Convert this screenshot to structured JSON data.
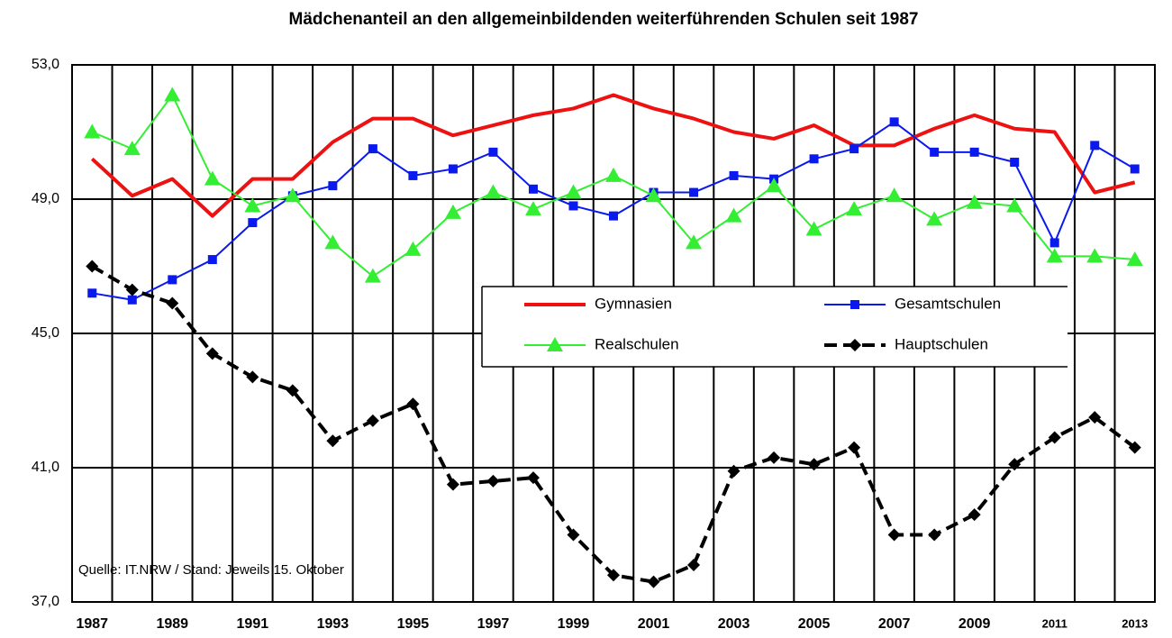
{
  "chart_data": {
    "type": "line",
    "title": "Mädchenanteil an den allgemeinbildenden weiterführenden Schulen seit 1987",
    "annotation": "Quelle: IT.NRW / Stand: Jeweils 15. Oktober",
    "categories": [
      "1987",
      null,
      "1989",
      null,
      "1991",
      null,
      "1993",
      null,
      "1995",
      null,
      "1997",
      null,
      "1999",
      null,
      "2001",
      null,
      "2003",
      null,
      "2005",
      null,
      "2007",
      null,
      "2009",
      null,
      "2011",
      null,
      "2013"
    ],
    "ylim": [
      37,
      53
    ],
    "yticks": [
      {
        "value": 37,
        "label": "37,0"
      },
      {
        "value": 41,
        "label": "41,0"
      },
      {
        "value": 45,
        "label": "45,0"
      },
      {
        "value": 49,
        "label": "49,0"
      },
      {
        "value": 53,
        "label": "53,0"
      }
    ],
    "grid": true,
    "series": [
      {
        "name": "Gymnasien",
        "color": "#ee1111",
        "marker": "none",
        "values": [
          50.2,
          49.1,
          49.6,
          48.5,
          49.6,
          49.6,
          50.7,
          51.4,
          51.4,
          50.9,
          51.2,
          51.5,
          51.7,
          52.1,
          51.7,
          51.4,
          51.0,
          50.8,
          51.2,
          50.6,
          50.6,
          51.1,
          51.5,
          51.1,
          51.0,
          49.2,
          49.5
        ]
      },
      {
        "name": "Gesamtschulen",
        "color": "#0a1aee",
        "marker": "square",
        "values": [
          46.2,
          46.0,
          46.6,
          47.2,
          48.3,
          49.1,
          49.4,
          50.5,
          49.7,
          49.9,
          50.4,
          49.3,
          48.8,
          48.5,
          49.2,
          49.2,
          49.7,
          49.6,
          50.2,
          50.5,
          51.3,
          50.4,
          50.4,
          50.1,
          47.7,
          50.6,
          49.9
        ]
      },
      {
        "name": "Realschulen",
        "color": "#33ee33",
        "marker": "triangle",
        "values": [
          51.0,
          50.5,
          52.1,
          49.6,
          48.8,
          49.1,
          47.7,
          46.7,
          47.5,
          48.6,
          49.2,
          48.7,
          49.2,
          49.7,
          49.1,
          47.7,
          48.5,
          49.4,
          48.1,
          48.7,
          49.1,
          48.4,
          48.9,
          48.8,
          47.3,
          47.3,
          47.2
        ]
      },
      {
        "name": "Hauptschulen",
        "color": "#000000",
        "marker": "diamond",
        "dashed": true,
        "values": [
          47.0,
          46.3,
          45.9,
          44.4,
          43.7,
          43.3,
          41.8,
          42.4,
          42.9,
          40.5,
          40.6,
          40.7,
          39.0,
          37.8,
          37.6,
          38.1,
          40.9,
          41.3,
          41.1,
          41.6,
          39.0,
          39.0,
          39.6,
          41.1,
          41.9,
          42.5,
          41.6
        ]
      }
    ]
  }
}
